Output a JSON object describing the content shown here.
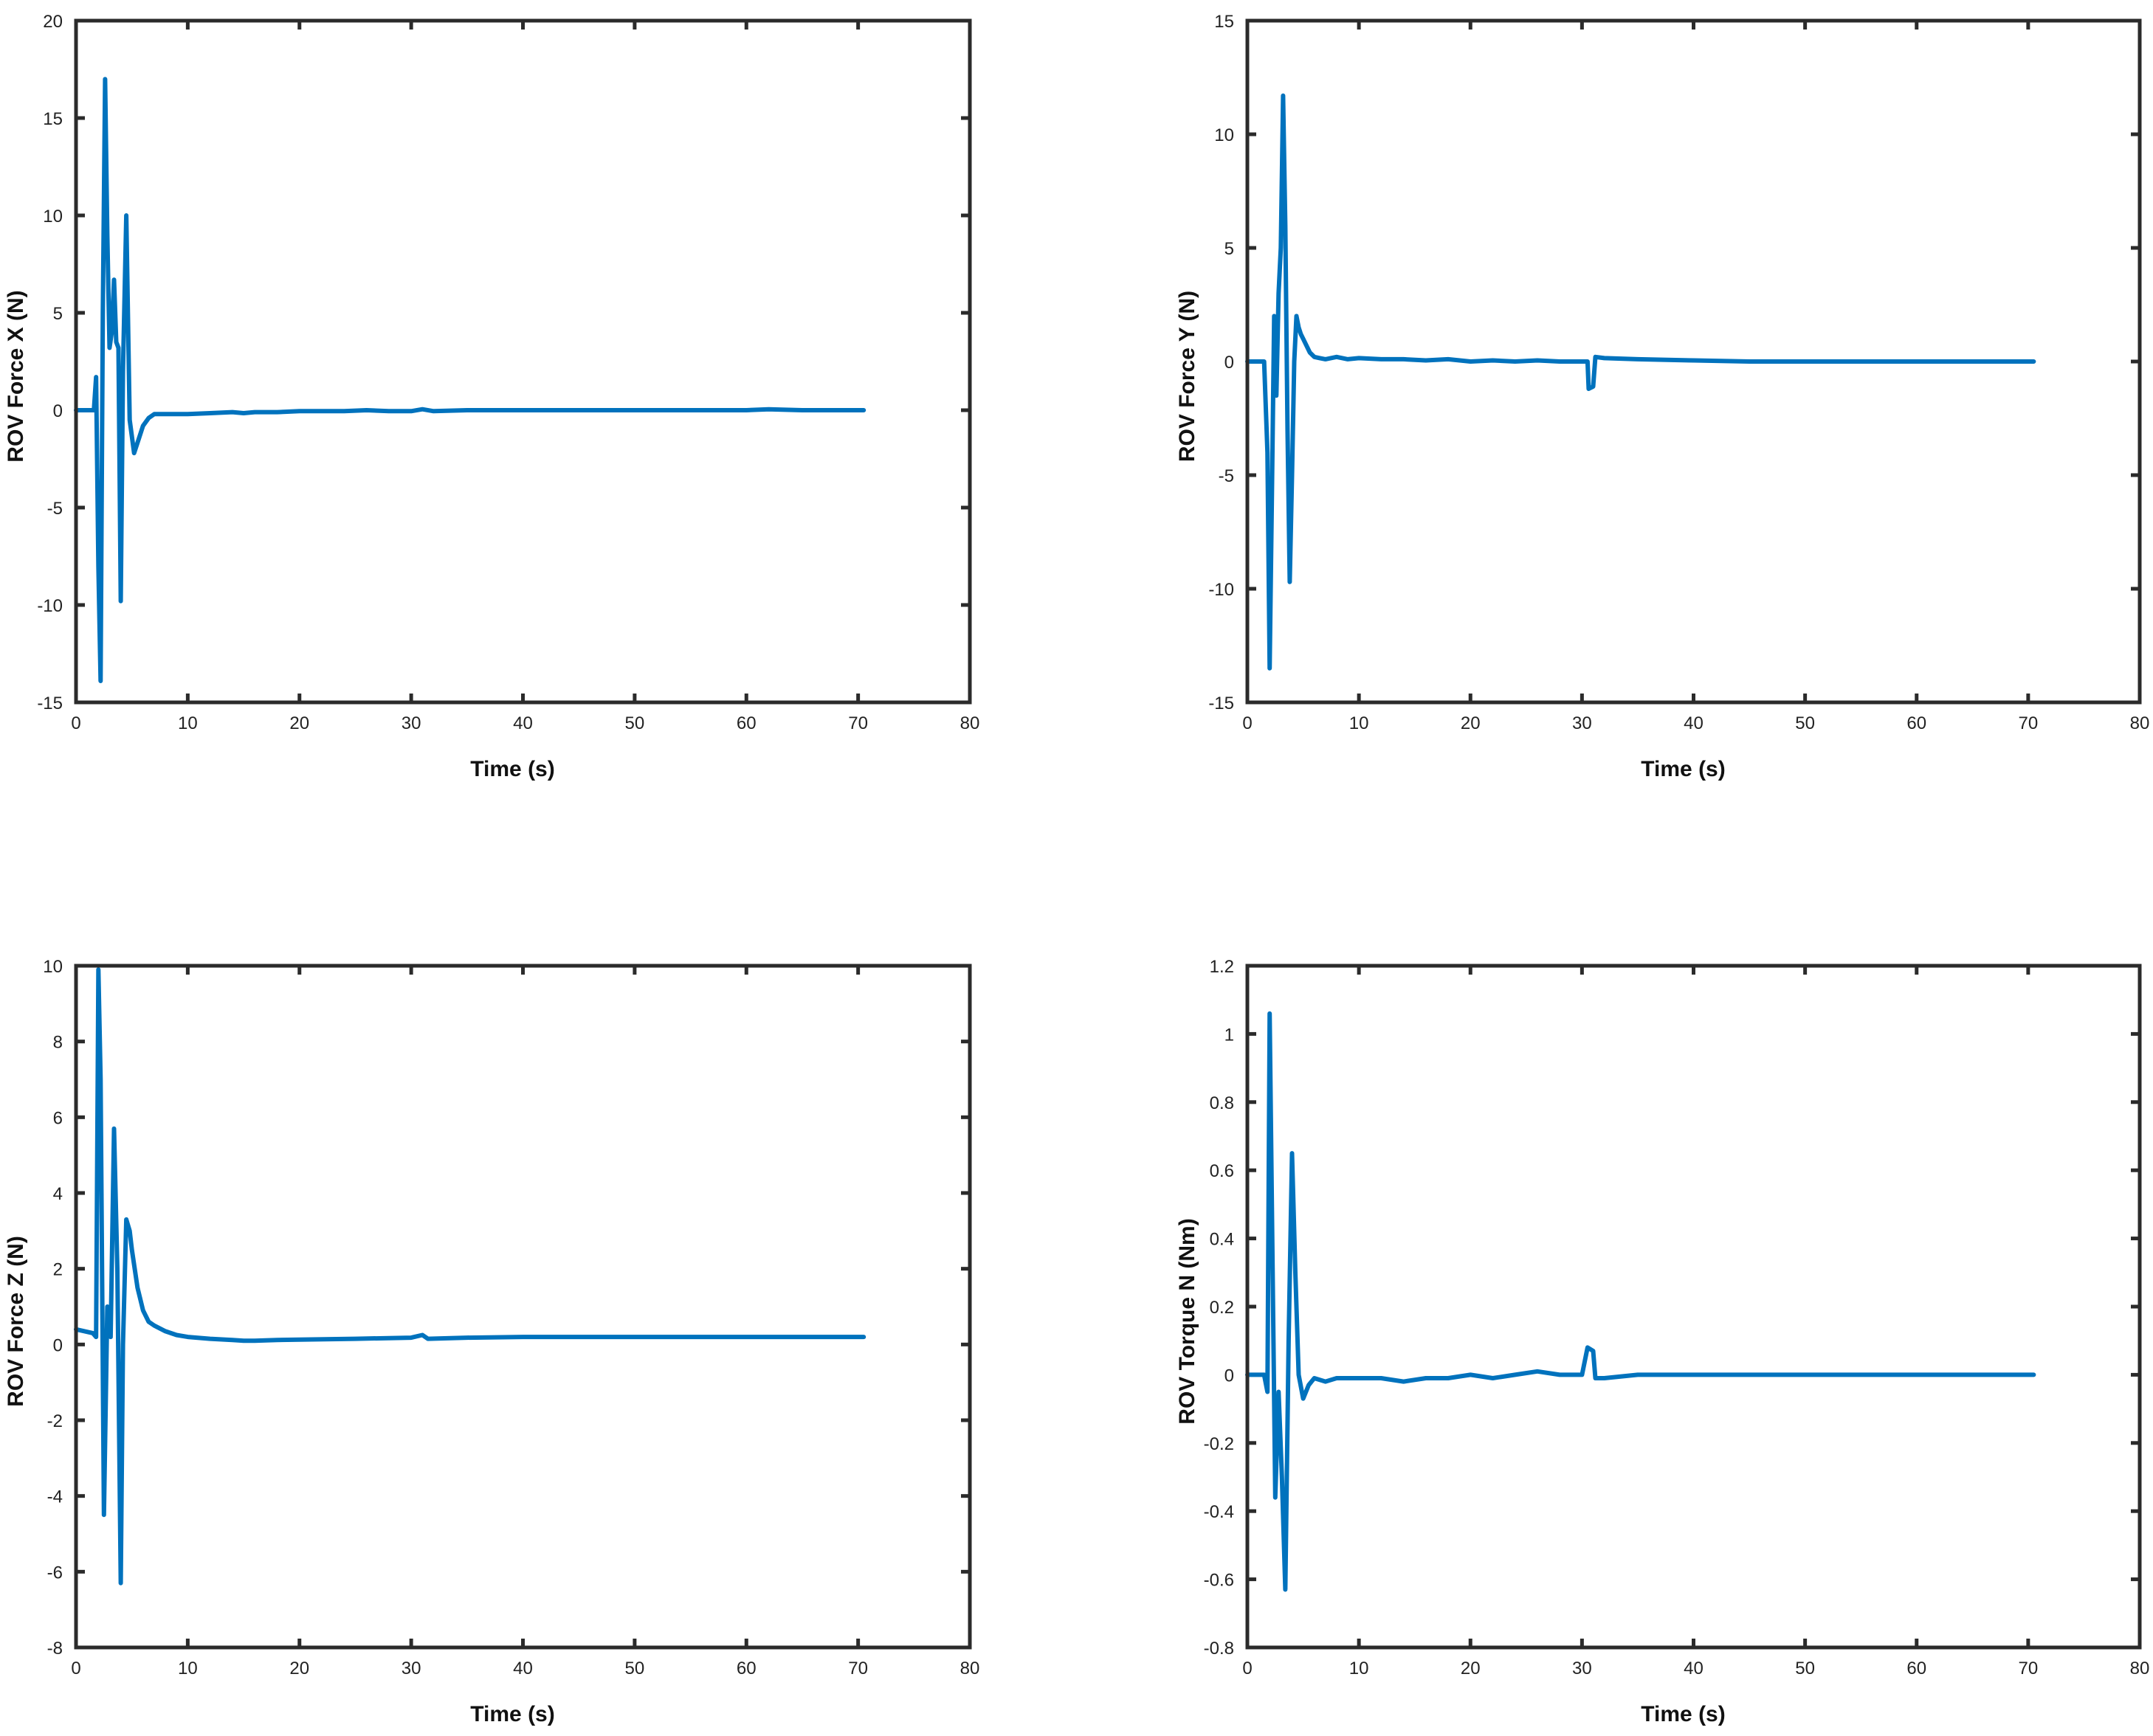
{
  "colors": {
    "series": "#0072BD",
    "axis": "#2b2b2b"
  },
  "chart_data": [
    {
      "type": "line",
      "xlabel": "Time (s)",
      "ylabel": "ROV Force X (N)",
      "xlim": [
        0,
        80
      ],
      "ylim": [
        -15,
        20
      ],
      "xticks": [
        0,
        10,
        20,
        30,
        40,
        50,
        60,
        70,
        80
      ],
      "yticks": [
        -15,
        -10,
        -5,
        0,
        5,
        10,
        15,
        20
      ],
      "series": [
        {
          "x": [
            0,
            1.6,
            1.8,
            2.0,
            2.2,
            2.4,
            2.6,
            2.8,
            3.0,
            3.2,
            3.4,
            3.6,
            3.8,
            4.0,
            4.2,
            4.5,
            4.8,
            5.2,
            5.6,
            6.0,
            6.5,
            7,
            8,
            10,
            12,
            14,
            15,
            16,
            18,
            20,
            22,
            24,
            26,
            28,
            30,
            31,
            32,
            35,
            40,
            45,
            50,
            55,
            60,
            62,
            65,
            68,
            70.5
          ],
          "y": [
            0,
            0,
            1.7,
            -8,
            -13.9,
            5,
            17,
            9,
            3.2,
            4,
            6.7,
            3.5,
            3.2,
            -9.8,
            2,
            10,
            -0.5,
            -2.2,
            -1.5,
            -0.8,
            -0.4,
            -0.2,
            -0.2,
            -0.2,
            -0.15,
            -0.1,
            -0.15,
            -0.1,
            -0.1,
            -0.05,
            -0.05,
            -0.05,
            0,
            -0.05,
            -0.05,
            0.05,
            -0.05,
            0,
            0,
            0,
            0,
            0,
            0,
            0.05,
            0,
            0,
            0
          ]
        }
      ]
    },
    {
      "type": "line",
      "xlabel": "Time (s)",
      "ylabel": "ROV Force Y (N)",
      "xlim": [
        0,
        80
      ],
      "ylim": [
        -15,
        15
      ],
      "xticks": [
        0,
        10,
        20,
        30,
        40,
        50,
        60,
        70,
        80
      ],
      "yticks": [
        -15,
        -10,
        -5,
        0,
        5,
        10,
        15
      ],
      "series": [
        {
          "x": [
            0,
            1.5,
            1.8,
            2.0,
            2.2,
            2.4,
            2.6,
            2.8,
            3.0,
            3.2,
            3.4,
            3.6,
            3.8,
            4.0,
            4.2,
            4.4,
            4.6,
            4.8,
            5.0,
            5.3,
            5.6,
            6.0,
            6.5,
            7,
            8,
            9,
            10,
            12,
            14,
            16,
            18,
            20,
            22,
            24,
            26,
            28,
            30,
            30.5,
            30.6,
            31,
            31.2,
            32,
            35,
            40,
            45,
            50,
            55,
            60,
            65,
            70.5
          ],
          "y": [
            0,
            0,
            -4,
            -13.5,
            -6,
            2,
            -1.5,
            3,
            5,
            11.7,
            6,
            -3,
            -9.7,
            -5,
            0,
            2,
            1.5,
            1.2,
            1.0,
            0.7,
            0.4,
            0.2,
            0.15,
            0.1,
            0.2,
            0.1,
            0.15,
            0.1,
            0.1,
            0.05,
            0.1,
            0,
            0.05,
            0,
            0.05,
            0,
            0,
            0,
            -1.2,
            -1.1,
            0.2,
            0.15,
            0.1,
            0.05,
            0,
            0,
            0,
            0,
            0,
            0
          ]
        }
      ]
    },
    {
      "type": "line",
      "xlabel": "Time (s)",
      "ylabel": "ROV Force Z (N)",
      "xlim": [
        0,
        80
      ],
      "ylim": [
        -8,
        10
      ],
      "xticks": [
        0,
        10,
        20,
        30,
        40,
        50,
        60,
        70,
        80
      ],
      "yticks": [
        -8,
        -6,
        -4,
        -2,
        0,
        2,
        4,
        6,
        8,
        10
      ],
      "series": [
        {
          "x": [
            0,
            1.5,
            1.8,
            2.0,
            2.2,
            2.5,
            2.8,
            3.1,
            3.4,
            3.7,
            4.0,
            4.2,
            4.5,
            4.8,
            5.0,
            5.5,
            6.0,
            6.5,
            7.0,
            8,
            9,
            10,
            12,
            14,
            15,
            16,
            18,
            20,
            25,
            30,
            31,
            31.5,
            35,
            40,
            50,
            60,
            70.5
          ],
          "y": [
            0.4,
            0.3,
            0.2,
            9.9,
            7,
            -4.5,
            1,
            0.2,
            5.7,
            2,
            -6.3,
            0,
            3.3,
            3,
            2.5,
            1.5,
            0.9,
            0.6,
            0.5,
            0.35,
            0.25,
            0.2,
            0.15,
            0.12,
            0.1,
            0.1,
            0.12,
            0.13,
            0.15,
            0.18,
            0.25,
            0.15,
            0.18,
            0.2,
            0.2,
            0.2,
            0.2
          ]
        }
      ]
    },
    {
      "type": "line",
      "xlabel": "Time (s)",
      "ylabel": "ROV Torque N (Nm)",
      "xlim": [
        0,
        80
      ],
      "ylim": [
        -0.8,
        1.2
      ],
      "xticks": [
        0,
        10,
        20,
        30,
        40,
        50,
        60,
        70,
        80
      ],
      "yticks": [
        -0.8,
        -0.6,
        -0.4,
        -0.2,
        0,
        0.2,
        0.4,
        0.6,
        0.8,
        1.0,
        1.2
      ],
      "series": [
        {
          "x": [
            0,
            1.5,
            1.8,
            2.0,
            2.2,
            2.5,
            2.8,
            3.1,
            3.4,
            3.7,
            4.0,
            4.3,
            4.6,
            5.0,
            5.5,
            6,
            7,
            8,
            10,
            12,
            14,
            16,
            18,
            20,
            22,
            24,
            26,
            28,
            30,
            30.5,
            31,
            31.2,
            32,
            35,
            40,
            45,
            50,
            55,
            60,
            65,
            70.5
          ],
          "y": [
            0,
            0,
            -0.05,
            1.06,
            0.5,
            -0.36,
            -0.05,
            -0.3,
            -0.63,
            0.1,
            0.65,
            0.3,
            0,
            -0.07,
            -0.03,
            -0.01,
            -0.02,
            -0.01,
            -0.01,
            -0.01,
            -0.02,
            -0.01,
            -0.01,
            0,
            -0.01,
            0,
            0.01,
            0,
            0,
            0.08,
            0.07,
            -0.01,
            -0.01,
            0,
            0,
            0,
            0,
            0,
            0,
            0,
            0
          ]
        }
      ]
    }
  ]
}
